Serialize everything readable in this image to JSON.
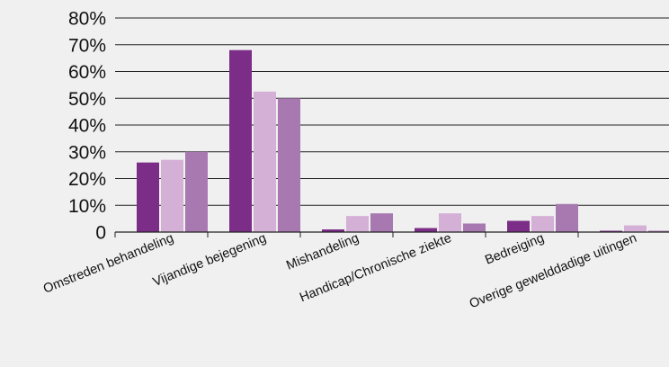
{
  "chart_data": {
    "type": "bar",
    "title": "",
    "xlabel": "",
    "ylabel": "",
    "ylim": [
      0,
      80
    ],
    "yticks": [
      "0",
      "10%",
      "20%",
      "30%",
      "40%",
      "50%",
      "60%",
      "70%",
      "80%"
    ],
    "grid": true,
    "legend": "none",
    "categories": [
      "Omstreden behandeling",
      "Vijandige bejegening",
      "Mishandeling",
      "Handicap/Chronische ziekte",
      "Bedreiging",
      "Overige gewelddadige uitingen"
    ],
    "series": [
      {
        "color": "#7b2d87",
        "values": [
          26,
          68,
          1,
          1.5,
          4.2,
          0.5
        ]
      },
      {
        "color": "#d4b0d6",
        "values": [
          27,
          52.5,
          6,
          7,
          6,
          2.5
        ]
      },
      {
        "color": "#a879b0",
        "values": [
          30,
          50,
          7,
          3.2,
          10.5,
          0.5
        ]
      }
    ]
  },
  "colors": {
    "background": "#f0f0f0",
    "gridline": "#222222"
  }
}
